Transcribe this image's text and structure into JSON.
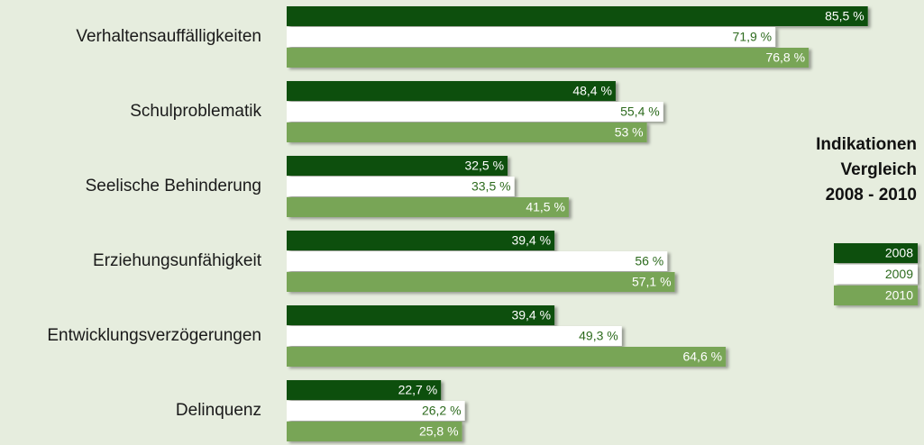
{
  "chart_data": {
    "type": "hbar",
    "title": [
      "Indikationen",
      "Vergleich",
      "2008 - 2010"
    ],
    "categories": [
      "Verhaltensauffälligkeiten",
      "Schulproblematik",
      "Seelische Behinderung",
      "Erziehungsunfähigkeit",
      "Entwicklungsverzögerungen",
      "Delinquenz"
    ],
    "series": [
      {
        "name": "2008",
        "color": "#0b4f0e",
        "values": [
          85.5,
          48.4,
          32.5,
          39.4,
          39.4,
          22.7
        ],
        "value_labels": [
          "85,5 %",
          "48,4 %",
          "32,5 %",
          "39,4 %",
          "39,4 %",
          "22,7 %"
        ]
      },
      {
        "name": "2009",
        "color": "#ffffff",
        "values": [
          71.9,
          55.4,
          33.5,
          56,
          49.3,
          26.2
        ],
        "value_labels": [
          "71,9 %",
          "55,4 %",
          "33,5 %",
          "56 %",
          "49,3 %",
          "26,2 %"
        ]
      },
      {
        "name": "2010",
        "color": "#78a556",
        "values": [
          76.8,
          53,
          41.5,
          57.1,
          64.6,
          25.8
        ],
        "value_labels": [
          "76,8 %",
          "53 %",
          "41,5 %",
          "57,1 %",
          "64,6 %",
          "25,8 %"
        ]
      }
    ],
    "legend": "right"
  }
}
